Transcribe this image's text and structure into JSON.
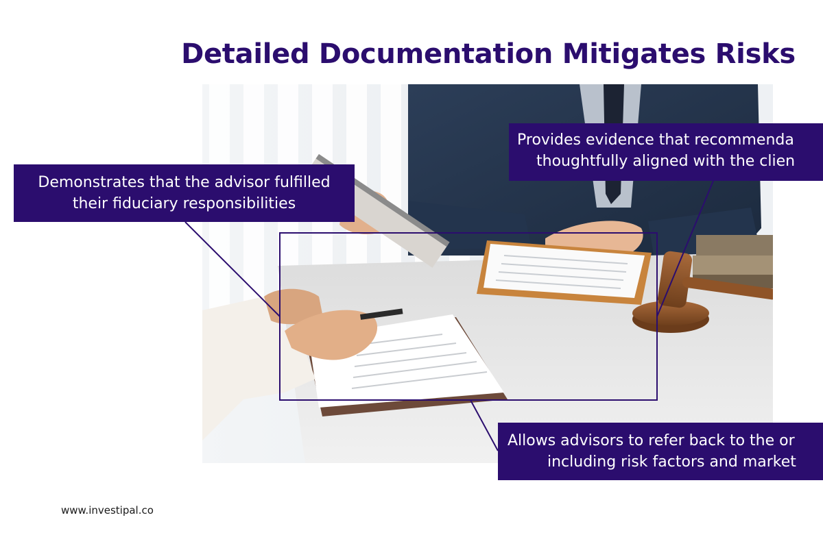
{
  "title": "Detailed Documentation Mitigates Risks",
  "callouts": {
    "left": {
      "line1": "Demonstrates that the advisor fulfilled",
      "line2": "their fiduciary responsibilities"
    },
    "top_right": {
      "line1": "Provides evidence that recommenda",
      "line2": "thoughtfully aligned with the clien"
    },
    "bottom_right": {
      "line1": "Allows advisors to refer back to the or",
      "line2": "including risk factors and market"
    }
  },
  "footer": {
    "url": "www.investipal.co"
  },
  "colors": {
    "brand": "#2b0d6e",
    "background": "#ffffff"
  }
}
